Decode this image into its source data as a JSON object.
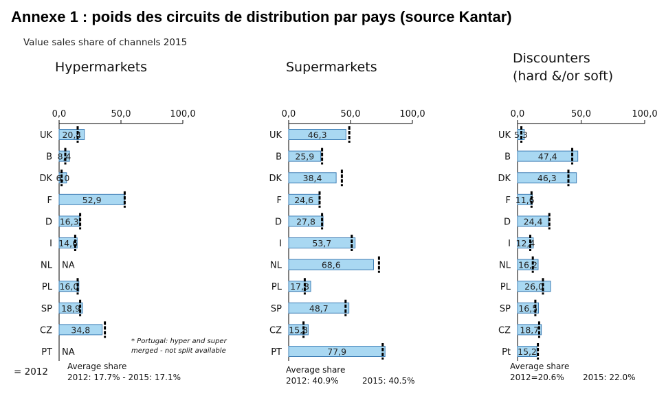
{
  "page": {
    "title": "Annexe 1 : poids des circuits de distribution par pays (source Kantar)",
    "subtitle": "Value sales share of channels 2015",
    "legend_text": "= 2012",
    "footnote": [
      "* Portugal: hyper and super",
      "merged - not split available"
    ]
  },
  "colors": {
    "bar_fill": "#a9d8f2",
    "bar_stroke": "#3f7fb6",
    "marker_2012": "#000000"
  },
  "chart_data": [
    {
      "type": "bar",
      "orientation": "horizontal",
      "title_lines": [
        "Hypermarkets"
      ],
      "ticks": [
        "0,0",
        "50,0",
        "100,0"
      ],
      "xlim": [
        0,
        100
      ],
      "categories": [
        "UK",
        "B",
        "DK",
        "F",
        "D",
        "I",
        "NL",
        "PL",
        "SP",
        "CZ",
        "PT"
      ],
      "values": [
        20.4,
        8.4,
        6.0,
        52.9,
        16.3,
        14.6,
        null,
        16.0,
        18.9,
        34.8,
        null
      ],
      "labels": [
        "20,4",
        "8,4",
        "6,0",
        "52,9",
        "16,3",
        "14,6",
        "NA",
        "16,0",
        "18,9",
        "34,8",
        "NA"
      ],
      "values_2012": [
        15,
        5,
        2,
        53,
        17,
        13,
        null,
        15,
        17,
        37,
        null
      ],
      "average_lines": [
        "Average share",
        "2012: 17.7% - 2015: 17.1%"
      ]
    },
    {
      "type": "bar",
      "orientation": "horizontal",
      "title_lines": [
        "Supermarkets"
      ],
      "ticks": [
        "0,0",
        "50,0",
        "100,0"
      ],
      "xlim": [
        0,
        100
      ],
      "categories": [
        "UK",
        "B",
        "DK",
        "F",
        "D",
        "I",
        "NL",
        "PL",
        "SP",
        "CZ",
        "PT"
      ],
      "values": [
        46.3,
        25.9,
        38.4,
        24.6,
        27.8,
        53.7,
        68.6,
        17.8,
        48.7,
        15.8,
        77.9
      ],
      "labels": [
        "46,3",
        "25,9",
        "38,4",
        "24,6",
        "27,8",
        "53,7",
        "68,6",
        "17,8",
        "48,7",
        "15,8",
        "77,9"
      ],
      "values_2012": [
        49,
        27,
        43,
        25,
        27,
        51,
        73,
        13,
        46,
        12,
        76
      ],
      "average_lines": [
        "Average share",
        "2012: 40.9%",
        "2015: 40.5%"
      ]
    },
    {
      "type": "bar",
      "orientation": "horizontal",
      "title_lines": [
        "Discounters",
        "(hard &/or soft)"
      ],
      "ticks": [
        "0,0",
        "50,0",
        "100,0"
      ],
      "xlim": [
        0,
        100
      ],
      "categories": [
        "UK",
        "B",
        "DK",
        "F",
        "D",
        "I",
        "NL",
        "PL",
        "SP",
        "CZ",
        "Pt"
      ],
      "values": [
        5.3,
        47.4,
        46.3,
        11.6,
        24.4,
        12.4,
        16.2,
        26.0,
        16.5,
        18.7,
        15.2
      ],
      "labels": [
        "5,3",
        "47,4",
        "46,3",
        "11,6",
        "24,4",
        "12,4",
        "16,2",
        "26,0",
        "16,5",
        "18,7",
        "15,2"
      ],
      "values_2012": [
        3,
        43,
        40,
        11,
        25,
        10,
        12,
        20,
        14,
        17,
        16
      ],
      "average_lines": [
        "Average share",
        "2012=20.6%",
        "2015: 22.0%"
      ]
    }
  ]
}
